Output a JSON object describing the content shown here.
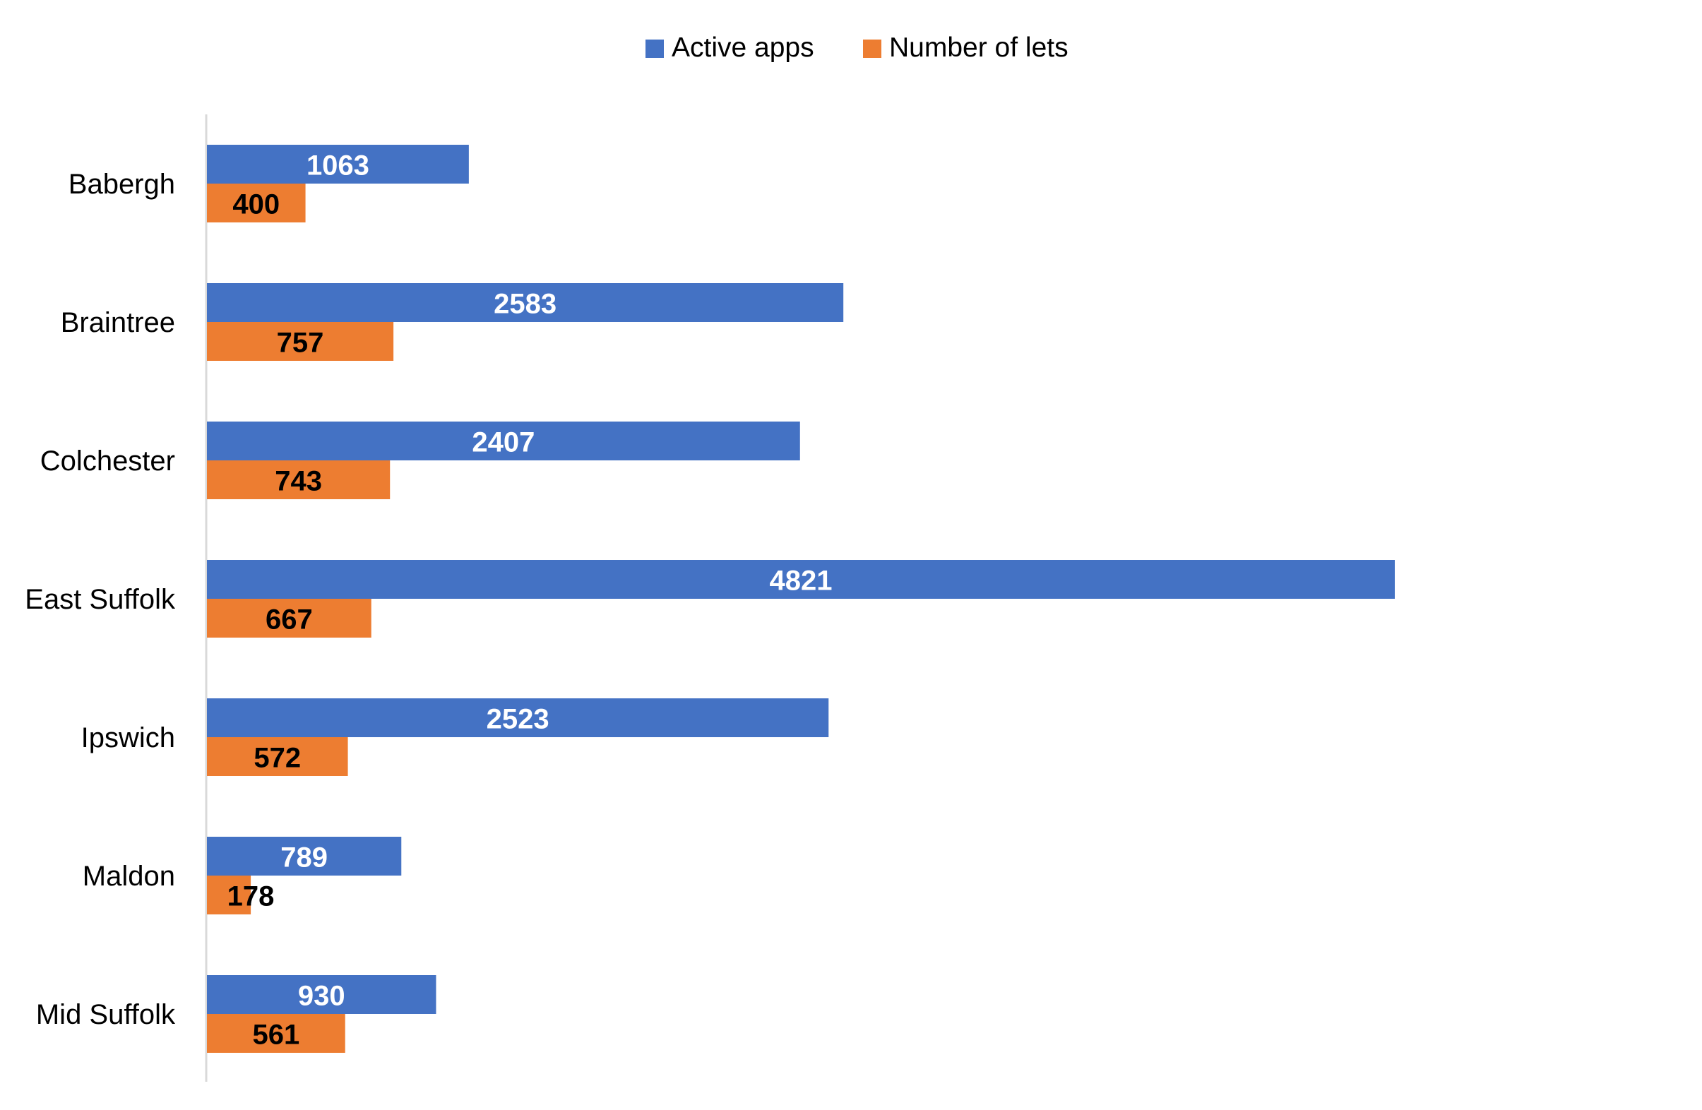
{
  "chart_data": {
    "type": "bar",
    "orientation": "horizontal",
    "title": "",
    "xlabel": "",
    "ylabel": "",
    "categories": [
      "Babergh",
      "Braintree",
      "Colchester",
      "East Suffolk",
      "Ipswich",
      "Maldon",
      "Mid Suffolk"
    ],
    "series": [
      {
        "name": "Active apps",
        "color": "#4472C4",
        "label_color": "#FFFFFF",
        "values": [
          1063,
          2583,
          2407,
          4821,
          2523,
          789,
          930
        ]
      },
      {
        "name": "Number of lets",
        "color": "#ED7D31",
        "label_color": "#000000",
        "values": [
          400,
          757,
          743,
          667,
          572,
          178,
          561
        ]
      }
    ],
    "xlim": [
      0,
      6000
    ],
    "grid": false,
    "data_labels": true,
    "legend_position": "top-center"
  }
}
